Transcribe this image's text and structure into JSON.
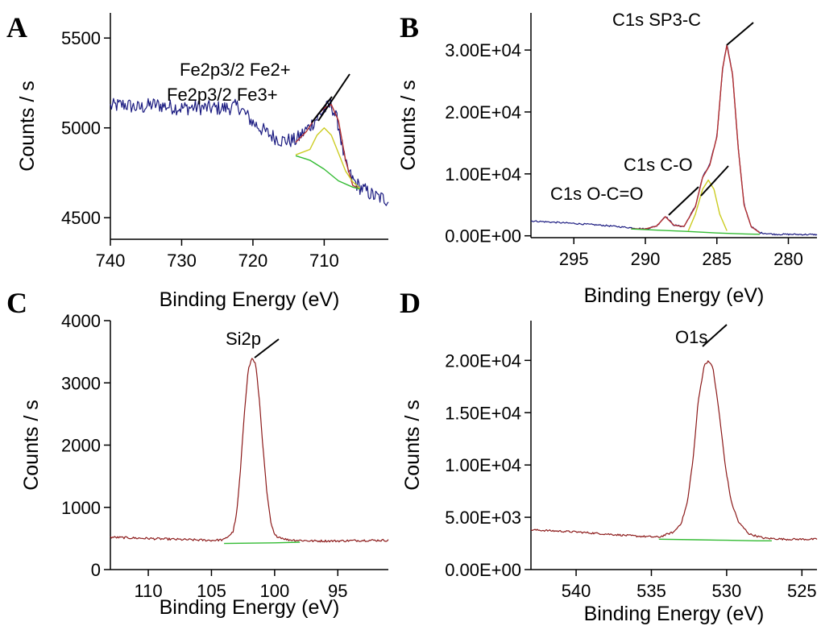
{
  "chart_data": [
    {
      "type": "line",
      "panel_label": "A",
      "xlabel": "Binding Energy (eV)",
      "ylabel": "Counts / s",
      "xlim": [
        740,
        701
      ],
      "ylim": [
        4380,
        5640
      ],
      "x_reversed": true,
      "x_ticks": [
        740,
        730,
        720,
        710
      ],
      "y_ticks": [
        4500,
        5000,
        5500
      ],
      "y_tick_labels": [
        "4500",
        "5000",
        "5500"
      ],
      "grid": false,
      "annotations": [
        {
          "text": "Fe2p3/2 Fe2+",
          "peak_x": 709.0,
          "peak_y": 5140
        },
        {
          "text": "Fe2p3/2 Fe3+",
          "peak_x": 711.0,
          "peak_y": 5100
        }
      ],
      "series": [
        {
          "color": "#1a1a80",
          "points": [
            [
              740,
              5120
            ],
            [
              738,
              5130
            ],
            [
              736,
              5110
            ],
            [
              734,
              5130
            ],
            [
              732,
              5120
            ],
            [
              730,
              5110
            ],
            [
              728,
              5115
            ],
            [
              726,
              5110
            ],
            [
              724,
              5110
            ],
            [
              722,
              5120
            ],
            [
              720,
              5030
            ],
            [
              718,
              4970
            ],
            [
              716,
              4930
            ],
            [
              714,
              4930
            ],
            [
              712,
              5010
            ],
            [
              710,
              5100
            ],
            [
              709,
              5130
            ],
            [
              708,
              5020
            ],
            [
              707,
              4790
            ],
            [
              706,
              4710
            ],
            [
              705,
              4670
            ],
            [
              703,
              4620
            ],
            [
              701,
              4600
            ]
          ],
          "noise": 42
        },
        {
          "color": "#b33030",
          "points": [
            [
              714,
              4920
            ],
            [
              712.5,
              4980
            ],
            [
              711,
              5070
            ],
            [
              710,
              5110
            ],
            [
              709,
              5130
            ],
            [
              708,
              5040
            ],
            [
              707,
              4820
            ],
            [
              706,
              4680
            ],
            [
              705,
              4660
            ]
          ]
        },
        {
          "color": "#33bb33",
          "points": [
            [
              714,
              4845
            ],
            [
              712,
              4820
            ],
            [
              710,
              4770
            ],
            [
              708,
              4705
            ],
            [
              706,
              4670
            ],
            [
              705,
              4660
            ]
          ]
        },
        {
          "color": "#cccc22",
          "points": [
            [
              714,
              4850
            ],
            [
              712,
              4880
            ],
            [
              711,
              4960
            ],
            [
              710,
              5000
            ],
            [
              709,
              4960
            ],
            [
              708,
              4860
            ],
            [
              707,
              4760
            ],
            [
              706,
              4700
            ],
            [
              705,
              4665
            ]
          ]
        }
      ]
    },
    {
      "type": "line",
      "panel_label": "B",
      "xlabel": "Binding Energy (eV)",
      "ylabel": "Counts / s",
      "xlim": [
        298,
        278
      ],
      "ylim": [
        -300,
        36000
      ],
      "x_reversed": true,
      "x_ticks": [
        295,
        290,
        285,
        280
      ],
      "y_ticks": [
        0,
        10000,
        20000,
        30000
      ],
      "y_tick_labels": [
        "0.00E+00",
        "1.00E+04",
        "2.00E+04",
        "3.00E+04"
      ],
      "grid": false,
      "annotations": [
        {
          "text": "C1s SP3-C",
          "peak_x": 284.3,
          "peak_y": 31000
        },
        {
          "text": "C1s C-O",
          "peak_x": 285.8,
          "peak_y": 11500
        },
        {
          "text": "C1s O-C=O",
          "peak_x": 288.5,
          "peak_y": 3000
        }
      ],
      "series": [
        {
          "color": "#1a1a80",
          "points": [
            [
              298,
              2400
            ],
            [
              295,
              2000
            ],
            [
              293,
              1700
            ],
            [
              291,
              1300
            ],
            [
              290,
              1100
            ],
            [
              289.2,
              1600
            ],
            [
              288.6,
              3200
            ],
            [
              288,
              1700
            ],
            [
              287.3,
              1500
            ],
            [
              286.5,
              4800
            ],
            [
              286,
              9500
            ],
            [
              285.5,
              11500
            ],
            [
              285,
              16000
            ],
            [
              284.6,
              27000
            ],
            [
              284.3,
              31000
            ],
            [
              283.9,
              26000
            ],
            [
              283.5,
              14000
            ],
            [
              283.1,
              5000
            ],
            [
              282.6,
              1500
            ],
            [
              282,
              500
            ],
            [
              281,
              250
            ],
            [
              278,
              200
            ]
          ],
          "noise": 120
        },
        {
          "color": "#b33030",
          "points": [
            [
              291,
              1150
            ],
            [
              290,
              1100
            ],
            [
              289.2,
              1600
            ],
            [
              288.6,
              3100
            ],
            [
              288,
              1700
            ],
            [
              287.3,
              1500
            ],
            [
              286.5,
              4700
            ],
            [
              286,
              9400
            ],
            [
              285.5,
              11400
            ],
            [
              285,
              16000
            ],
            [
              284.6,
              27000
            ],
            [
              284.3,
              30800
            ],
            [
              283.9,
              26000
            ],
            [
              283.5,
              14000
            ],
            [
              283.1,
              5000
            ],
            [
              282.6,
              1500
            ],
            [
              282,
              500
            ]
          ]
        },
        {
          "color": "#cccc22",
          "points": [
            [
              287,
              800
            ],
            [
              286.5,
              3500
            ],
            [
              286,
              7500
            ],
            [
              285.6,
              9000
            ],
            [
              285.2,
              7500
            ],
            [
              284.8,
              3500
            ],
            [
              284.3,
              800
            ]
          ]
        },
        {
          "color": "#33bb33",
          "points": [
            [
              291,
              1100
            ],
            [
              289,
              900
            ],
            [
              287,
              700
            ],
            [
              285,
              450
            ],
            [
              283,
              300
            ],
            [
              282,
              250
            ]
          ]
        }
      ]
    },
    {
      "type": "line",
      "panel_label": "C",
      "xlabel": "Binding Energy (eV)",
      "ylabel": "Counts / s",
      "xlim": [
        113,
        91
      ],
      "ylim": [
        0,
        4000
      ],
      "x_reversed": true,
      "x_ticks": [
        110,
        105,
        100,
        95
      ],
      "y_ticks": [
        0,
        1000,
        2000,
        3000,
        4000
      ],
      "y_tick_labels": [
        "0",
        "1000",
        "2000",
        "3000",
        "4000"
      ],
      "grid": false,
      "annotations": [
        {
          "text": "Si2p",
          "peak_x": 101.7,
          "peak_y": 3400
        }
      ],
      "series": [
        {
          "color": "#8c1a1a",
          "points": [
            [
              113,
              520
            ],
            [
              110,
              500
            ],
            [
              107,
              480
            ],
            [
              105,
              470
            ],
            [
              104,
              480
            ],
            [
              103.3,
              600
            ],
            [
              103,
              900
            ],
            [
              102.7,
              1600
            ],
            [
              102.4,
              2500
            ],
            [
              102.1,
              3200
            ],
            [
              101.8,
              3400
            ],
            [
              101.5,
              3300
            ],
            [
              101.2,
              2700
            ],
            [
              100.9,
              1900
            ],
            [
              100.6,
              1200
            ],
            [
              100.3,
              750
            ],
            [
              100,
              550
            ],
            [
              99,
              480
            ],
            [
              97,
              460
            ],
            [
              95,
              460
            ],
            [
              93,
              470
            ],
            [
              91,
              470
            ]
          ],
          "noise": 18
        },
        {
          "color": "#33bb33",
          "points": [
            [
              104,
              420
            ],
            [
              102,
              425
            ],
            [
              100,
              430
            ],
            [
              98,
              440
            ]
          ]
        }
      ]
    },
    {
      "type": "line",
      "panel_label": "D",
      "xlabel": "Binding Energy (eV)",
      "ylabel": "Counts / s",
      "xlim": [
        543,
        524
      ],
      "ylim": [
        0,
        23800
      ],
      "x_reversed": true,
      "x_ticks": [
        540,
        535,
        530,
        525
      ],
      "y_ticks": [
        0,
        5000,
        10000,
        15000,
        20000
      ],
      "y_tick_labels": [
        "0.00E+00",
        "5.00E+03",
        "1.00E+04",
        "1.50E+04",
        "2.00E+04"
      ],
      "grid": false,
      "annotations": [
        {
          "text": "O1s",
          "peak_x": 531.2,
          "peak_y": 20000
        }
      ],
      "series": [
        {
          "color": "#8c1a1a",
          "points": [
            [
              543,
              3800
            ],
            [
              540,
              3600
            ],
            [
              538,
              3400
            ],
            [
              536,
              3200
            ],
            [
              534.5,
              3100
            ],
            [
              533.5,
              3600
            ],
            [
              533,
              4500
            ],
            [
              532.6,
              6500
            ],
            [
              532.2,
              11000
            ],
            [
              531.9,
              16000
            ],
            [
              531.5,
              19500
            ],
            [
              531.2,
              20000
            ],
            [
              530.9,
              19200
            ],
            [
              530.5,
              15000
            ],
            [
              530.1,
              10000
            ],
            [
              529.7,
              6500
            ],
            [
              529.2,
              4500
            ],
            [
              528.5,
              3400
            ],
            [
              527.5,
              3000
            ],
            [
              526,
              2900
            ],
            [
              524,
              2900
            ]
          ],
          "noise": 90
        },
        {
          "color": "#33bb33",
          "points": [
            [
              534.5,
              2900
            ],
            [
              532,
              2850
            ],
            [
              530,
              2800
            ],
            [
              528,
              2750
            ],
            [
              527,
              2750
            ]
          ]
        }
      ]
    }
  ]
}
